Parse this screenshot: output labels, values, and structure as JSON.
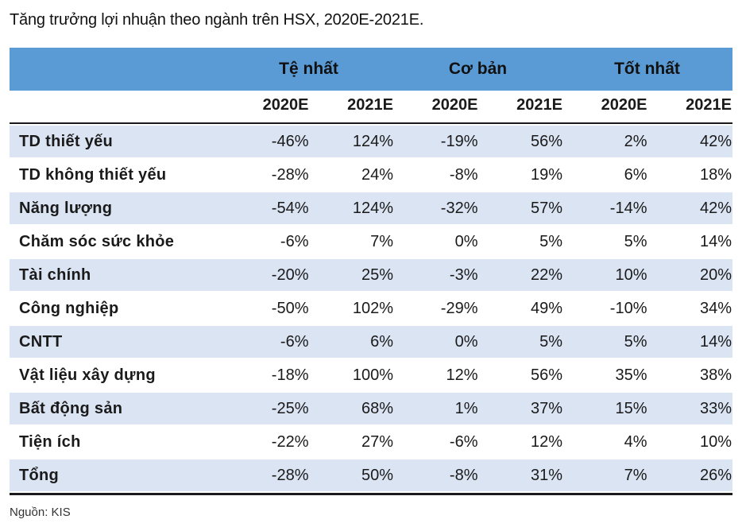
{
  "title": "Tăng trưởng lợi nhuận theo ngành trên HSX, 2020E-2021E.",
  "groups": [
    "Tệ nhất",
    "Cơ bản",
    "Tốt nhất"
  ],
  "years": [
    "2020E",
    "2021E",
    "2020E",
    "2021E",
    "2020E",
    "2021E"
  ],
  "rows": [
    {
      "label": "TD thiết yếu",
      "values": [
        "-46%",
        "124%",
        "-19%",
        "56%",
        "2%",
        "42%"
      ]
    },
    {
      "label": "TD không thiết yếu",
      "values": [
        "-28%",
        "24%",
        "-8%",
        "19%",
        "6%",
        "18%"
      ]
    },
    {
      "label": "Năng lượng",
      "values": [
        "-54%",
        "124%",
        "-32%",
        "57%",
        "-14%",
        "42%"
      ]
    },
    {
      "label": "Chăm sóc sức khỏe",
      "values": [
        "-6%",
        "7%",
        "0%",
        "5%",
        "5%",
        "14%"
      ]
    },
    {
      "label": "Tài chính",
      "values": [
        "-20%",
        "25%",
        "-3%",
        "22%",
        "10%",
        "20%"
      ]
    },
    {
      "label": "Công nghiệp",
      "values": [
        "-50%",
        "102%",
        "-29%",
        "49%",
        "-10%",
        "34%"
      ]
    },
    {
      "label": "CNTT",
      "values": [
        "-6%",
        "6%",
        "0%",
        "5%",
        "5%",
        "14%"
      ]
    },
    {
      "label": "Vật liệu xây dựng",
      "values": [
        "-18%",
        "100%",
        "12%",
        "56%",
        "35%",
        "38%"
      ]
    },
    {
      "label": "Bất động sản",
      "values": [
        "-25%",
        "68%",
        "1%",
        "37%",
        "15%",
        "33%"
      ]
    },
    {
      "label": "Tiện ích",
      "values": [
        "-22%",
        "27%",
        "-6%",
        "12%",
        "4%",
        "10%"
      ]
    },
    {
      "label": "Tổng",
      "values": [
        "-28%",
        "50%",
        "-8%",
        "31%",
        "7%",
        "26%"
      ]
    }
  ],
  "source": "Nguồn: KIS",
  "colors": {
    "header_bg": "#5b9bd5",
    "row_shade": "#dbe4f3"
  }
}
